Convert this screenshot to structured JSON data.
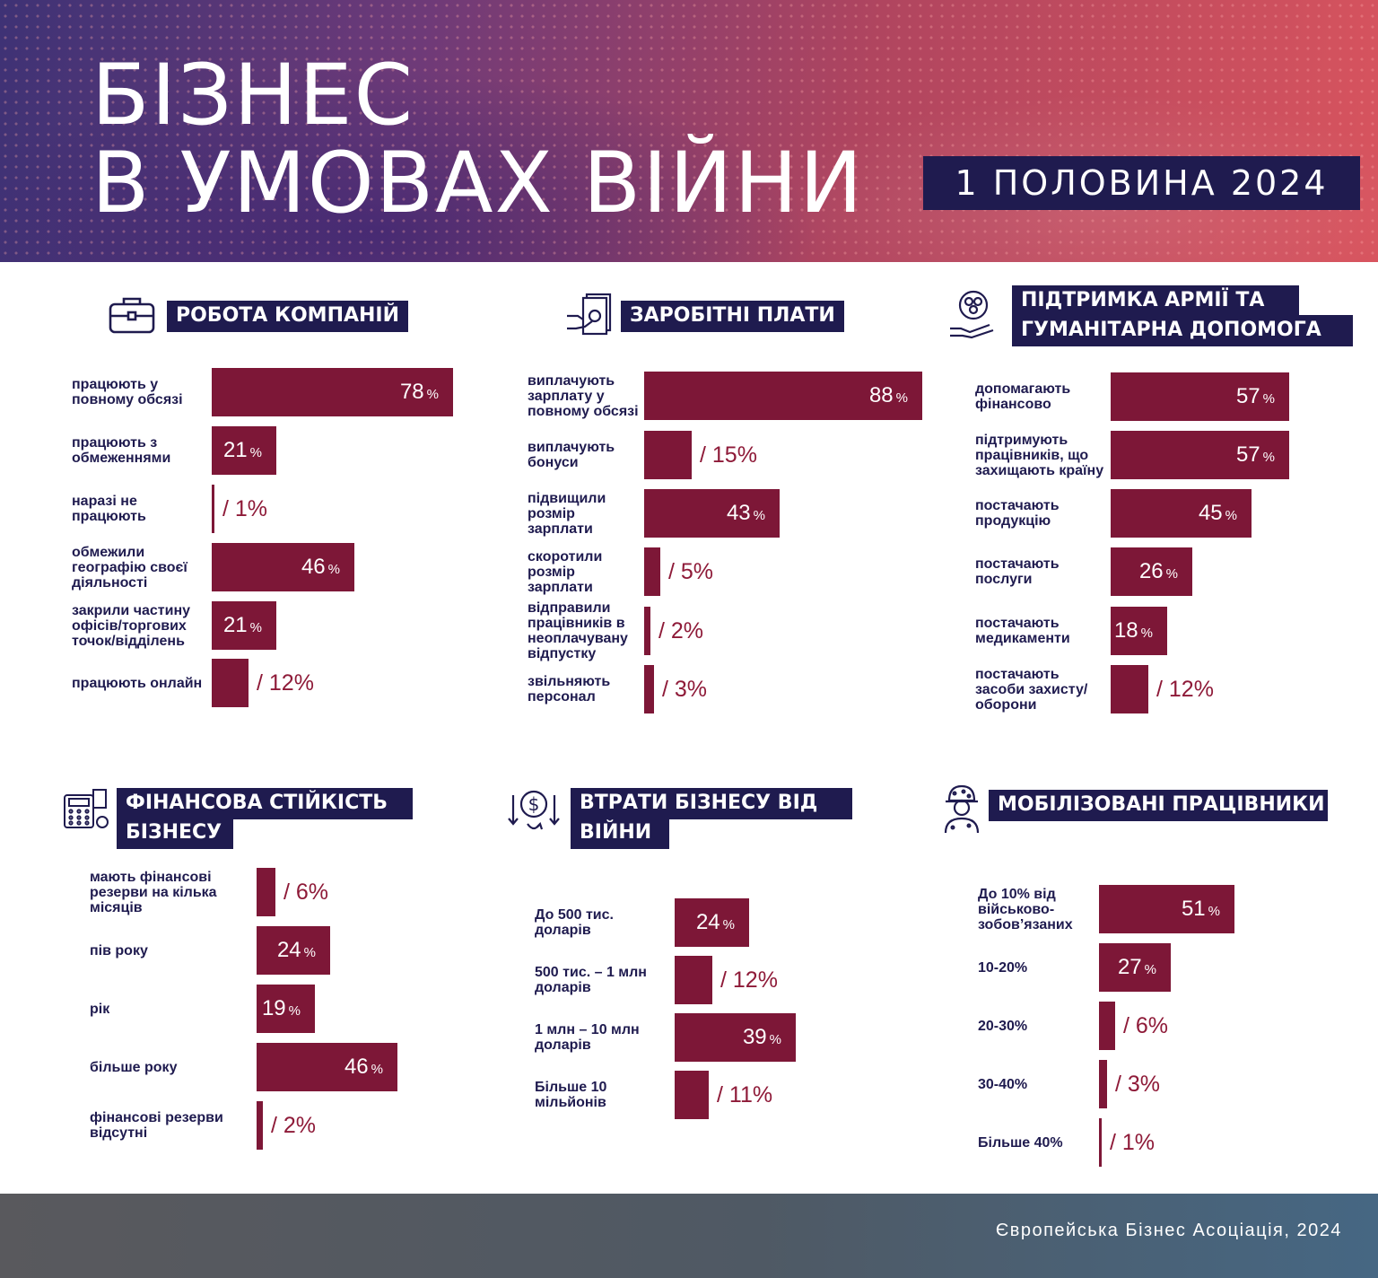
{
  "header": {
    "title_line1": "БІЗНЕС",
    "title_line2": "В УМОВАХ ВІЙНИ",
    "period": "1 ПОЛОВИНА 2024"
  },
  "footer": {
    "text": "Європейська Бізнес Асоціація, 2024"
  },
  "colors": {
    "bar": "#7d1737",
    "label": "#1f1b4f",
    "title_box": "#1f1b4f",
    "value_outside": "#8e1a38"
  },
  "chart_data": [
    {
      "type": "bar",
      "orientation": "horizontal",
      "icon": "briefcase-icon",
      "title": "РОБОТА КОМПАНІЙ",
      "categories": [
        "працюють у повному обсязі",
        "працюють з обмеженнями",
        "наразі не працюють",
        "обмежили географію своєї діяльності",
        "закрили частину офісів/торгових точок/відділень",
        "працюють онлайн"
      ],
      "values": [
        78,
        21,
        1,
        46,
        21,
        12
      ],
      "unit": "%"
    },
    {
      "type": "bar",
      "orientation": "horizontal",
      "icon": "money-hand-icon",
      "title": "ЗАРОБІТНІ ПЛАТИ",
      "categories": [
        "виплачують зарплату у повному обсязі",
        "виплачують бонуси",
        "підвищили розмір зарплати",
        "скоротили розмір зарплати",
        "відправили працівників в неоплачувану відпустку",
        "звільняють персонал"
      ],
      "values": [
        88,
        15,
        43,
        5,
        2,
        3
      ],
      "unit": "%"
    },
    {
      "type": "bar",
      "orientation": "horizontal",
      "icon": "donation-hand-icon",
      "title": "ПІДТРИМКА АРМІЇ ТА ГУМАНІТАРНА ДОПОМОГА",
      "categories": [
        "допомагають фінансово",
        "підтримують працівників, що захищають країну",
        "постачають продукцію",
        "постачають послуги",
        "постачають медикаменти",
        "постачають засоби захисту/оборони"
      ],
      "values": [
        57,
        57,
        45,
        26,
        18,
        12
      ],
      "unit": "%"
    },
    {
      "type": "bar",
      "orientation": "horizontal",
      "icon": "calculator-icon",
      "title": "ФІНАНСОВА СТІЙКІСТЬ БІЗНЕСУ",
      "categories": [
        "мають фінансові резерви на кілька місяців",
        "пів року",
        "рік",
        "більше року",
        "фінансові резерви відсутні"
      ],
      "values": [
        6,
        24,
        19,
        46,
        2
      ],
      "unit": "%"
    },
    {
      "type": "bar",
      "orientation": "horizontal",
      "icon": "dollar-down-icon",
      "title": "ВТРАТИ БІЗНЕСУ ВІД ВІЙНИ",
      "categories": [
        "До 500 тис. доларів",
        "500 тис. – 1 млн доларів",
        "1 млн – 10 млн доларів",
        "Більше 10 мільйонів"
      ],
      "values": [
        24,
        12,
        39,
        11
      ],
      "unit": "%"
    },
    {
      "type": "bar",
      "orientation": "horizontal",
      "icon": "soldier-icon",
      "title": "МОБІЛІЗОВАНІ ПРАЦІВНИКИ",
      "categories": [
        "До 10% від військово-зобов’язаних",
        "10-20%",
        "20-30%",
        "30-40%",
        "Більше 40%"
      ],
      "values": [
        51,
        27,
        6,
        3,
        1
      ],
      "unit": "%"
    }
  ]
}
